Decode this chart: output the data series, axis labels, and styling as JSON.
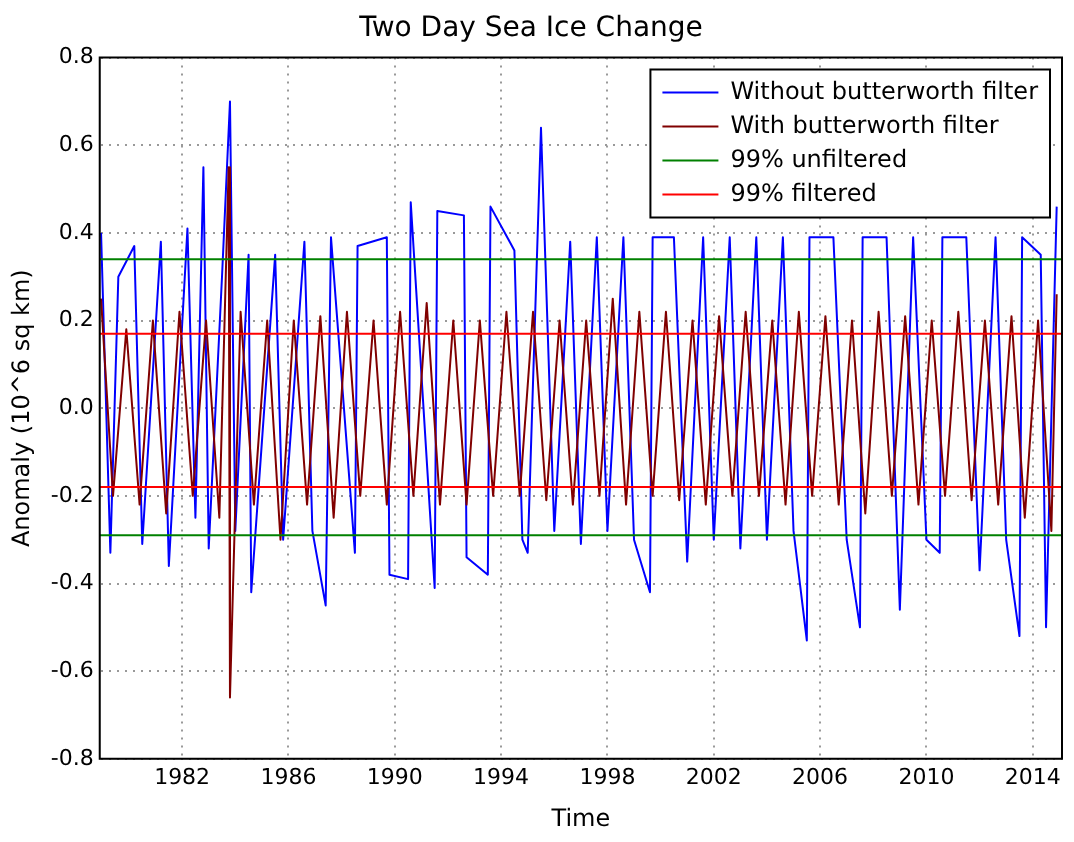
{
  "chart_data": {
    "type": "line",
    "title": "Two Day Sea Ice Change",
    "xlabel": "Time",
    "ylabel": "Anomaly (10^6 sq km)",
    "xlim": [
      1978.9,
      2015.1
    ],
    "xticks": [
      1982,
      1986,
      1990,
      1994,
      1998,
      2002,
      2006,
      2010,
      2014
    ],
    "ylim": [
      -0.8,
      0.8
    ],
    "yticks": [
      -0.8,
      -0.6,
      -0.4,
      -0.2,
      {
        "value": 0,
        "label": "0.0"
      },
      0.2,
      0.4,
      0.6,
      0.8
    ],
    "grid": true,
    "legend": "top right",
    "line_style": "solid",
    "marker": "none",
    "series": [
      {
        "name": "Without butterworth filter",
        "color": "#0000ff",
        "x": [
          1978.95,
          1979.3,
          1979.6,
          1980.2,
          1980.5,
          1981.2,
          1981.5,
          1982.2,
          1982.5,
          1982.8,
          1983.0,
          1983.5,
          1983.8,
          1984.0,
          1984.5,
          1984.6,
          1985.5,
          1985.8,
          1986.6,
          1986.9,
          1987.4,
          1987.6,
          1988.5,
          1988.6,
          1989.7,
          1989.8,
          1990.5,
          1990.6,
          1991.5,
          1991.6,
          1992.6,
          1992.7,
          1993.5,
          1993.6,
          1994.5,
          1994.8,
          1995.0,
          1995.5,
          1996.0,
          1996.6,
          1997.0,
          1997.6,
          1998.0,
          1998.6,
          1999.0,
          1999.6,
          1999.7,
          2000.5,
          2001.0,
          2001.6,
          2002.0,
          2002.6,
          2003.0,
          2003.6,
          2004.0,
          2004.6,
          2005.0,
          2005.5,
          2005.6,
          2006.5,
          2007.0,
          2007.5,
          2007.6,
          2008.5,
          2009.0,
          2009.5,
          2010.0,
          2010.5,
          2010.6,
          2011.5,
          2012.0,
          2012.6,
          2013.0,
          2013.5,
          2013.6,
          2014.3,
          2014.5,
          2014.9
        ],
        "values": [
          0.4,
          -0.33,
          0.3,
          0.37,
          -0.31,
          0.38,
          -0.36,
          0.41,
          -0.25,
          0.55,
          -0.32,
          0.3,
          0.7,
          -0.28,
          0.35,
          -0.42,
          0.35,
          -0.3,
          0.38,
          -0.28,
          -0.45,
          0.39,
          -0.33,
          0.37,
          0.39,
          -0.38,
          -0.39,
          0.47,
          -0.41,
          0.45,
          0.44,
          -0.34,
          -0.38,
          0.46,
          0.36,
          -0.3,
          -0.33,
          0.64,
          -0.28,
          0.38,
          -0.31,
          0.39,
          -0.28,
          0.39,
          -0.3,
          -0.42,
          0.39,
          0.39,
          -0.35,
          0.39,
          -0.3,
          0.39,
          -0.32,
          0.39,
          -0.3,
          0.39,
          -0.28,
          -0.53,
          0.39,
          0.39,
          -0.3,
          -0.5,
          0.39,
          0.39,
          -0.46,
          0.39,
          -0.3,
          -0.33,
          0.39,
          0.39,
          -0.37,
          0.39,
          -0.3,
          -0.52,
          0.39,
          0.35,
          -0.5,
          0.46
        ]
      },
      {
        "name": "With butterworth filter",
        "color": "#800000",
        "x": [
          1978.95,
          1979.4,
          1979.9,
          1980.4,
          1980.9,
          1981.4,
          1981.9,
          1982.4,
          1982.9,
          1983.4,
          1983.75,
          1983.8,
          1984.2,
          1984.7,
          1985.2,
          1985.7,
          1986.2,
          1986.7,
          1987.2,
          1987.7,
          1988.2,
          1988.7,
          1989.2,
          1989.7,
          1990.2,
          1990.7,
          1991.2,
          1991.7,
          1992.2,
          1992.7,
          1993.2,
          1993.7,
          1994.2,
          1994.7,
          1995.2,
          1995.7,
          1996.2,
          1996.7,
          1997.2,
          1997.7,
          1998.2,
          1998.7,
          1999.2,
          1999.7,
          2000.2,
          2000.7,
          2001.2,
          2001.7,
          2002.2,
          2002.7,
          2003.2,
          2003.7,
          2004.2,
          2004.7,
          2005.2,
          2005.7,
          2006.2,
          2006.7,
          2007.2,
          2007.7,
          2008.2,
          2008.7,
          2009.2,
          2009.7,
          2010.2,
          2010.7,
          2011.2,
          2011.7,
          2012.2,
          2012.7,
          2013.2,
          2013.7,
          2014.2,
          2014.7,
          2014.9
        ],
        "values": [
          0.25,
          -0.2,
          0.18,
          -0.22,
          0.2,
          -0.24,
          0.22,
          -0.2,
          0.2,
          -0.25,
          0.55,
          -0.66,
          0.22,
          -0.22,
          0.2,
          -0.3,
          0.2,
          -0.22,
          0.21,
          -0.25,
          0.22,
          -0.2,
          0.2,
          -0.22,
          0.22,
          -0.2,
          0.24,
          -0.22,
          0.2,
          -0.22,
          0.2,
          -0.2,
          0.22,
          -0.2,
          0.22,
          -0.21,
          0.2,
          -0.22,
          0.2,
          -0.2,
          0.25,
          -0.22,
          0.22,
          -0.2,
          0.22,
          -0.21,
          0.2,
          -0.22,
          0.21,
          -0.2,
          0.22,
          -0.2,
          0.2,
          -0.22,
          0.22,
          -0.2,
          0.21,
          -0.22,
          0.2,
          -0.24,
          0.22,
          -0.2,
          0.21,
          -0.22,
          0.2,
          -0.2,
          0.22,
          -0.21,
          0.2,
          -0.22,
          0.21,
          -0.25,
          0.2,
          -0.28,
          0.26
        ]
      },
      {
        "name": "99% unfiltered",
        "color": "#008000",
        "x": [
          1978.9,
          2015.1
        ],
        "values": [
          0.34,
          0.34
        ]
      },
      {
        "color": "#008000",
        "x": [
          1978.9,
          2015.1
        ],
        "values": [
          -0.29,
          -0.29
        ]
      },
      {
        "name": "99% filtered",
        "color": "#ff0000",
        "x": [
          1978.9,
          2015.1
        ],
        "values": [
          0.17,
          0.17
        ]
      },
      {
        "color": "#ff0000",
        "x": [
          1978.9,
          2015.1
        ],
        "values": [
          -0.18,
          -0.18
        ]
      }
    ]
  }
}
